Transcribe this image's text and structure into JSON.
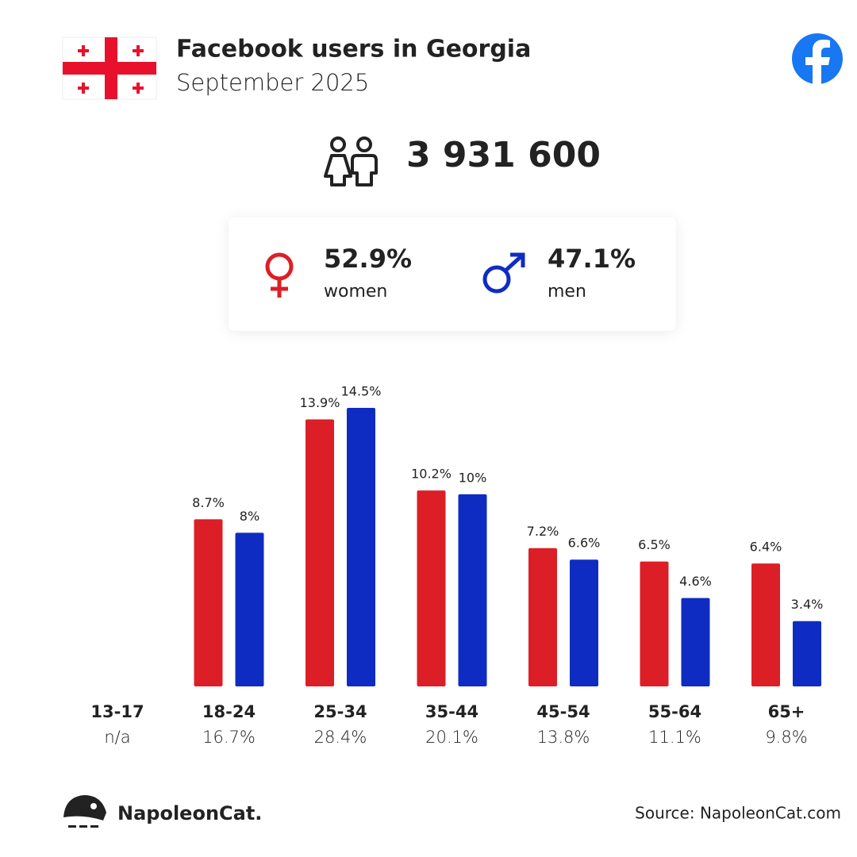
{
  "header": {
    "title": "Facebook users in Georgia",
    "subtitle": "September 2025"
  },
  "summary": {
    "total": "3 931 600"
  },
  "footer": {
    "brand": "NapoleonCat.",
    "source": "Source: NapoleonCat.com"
  },
  "chart_data": {
    "type": "bar",
    "categories": [
      "13-17",
      "18-24",
      "25-34",
      "35-44",
      "45-54",
      "55-64",
      "65+"
    ],
    "series": [
      {
        "name": "women",
        "color": "#dc1f26",
        "share": 52.9,
        "share_label": "52.9%",
        "values": [
          null,
          8.7,
          13.9,
          10.2,
          7.2,
          6.5,
          6.4
        ],
        "value_labels": [
          null,
          "8.7%",
          "13.9%",
          "10.2%",
          "7.2%",
          "6.5%",
          "6.4%"
        ]
      },
      {
        "name": "men",
        "color": "#0f2cc2",
        "share": 47.1,
        "share_label": "47.1%",
        "values": [
          null,
          8,
          14.5,
          10,
          6.6,
          4.6,
          3.4
        ],
        "value_labels": [
          null,
          "8%",
          "14.5%",
          "10%",
          "6.6%",
          "4.6%",
          "3.4%"
        ]
      }
    ],
    "category_totals": [
      null,
      16.7,
      28.4,
      20.1,
      13.8,
      11.1,
      9.8
    ],
    "category_total_labels": [
      "n/a",
      "16.7%",
      "28.4%",
      "20.1%",
      "13.8%",
      "11.1%",
      "9.8%"
    ]
  }
}
